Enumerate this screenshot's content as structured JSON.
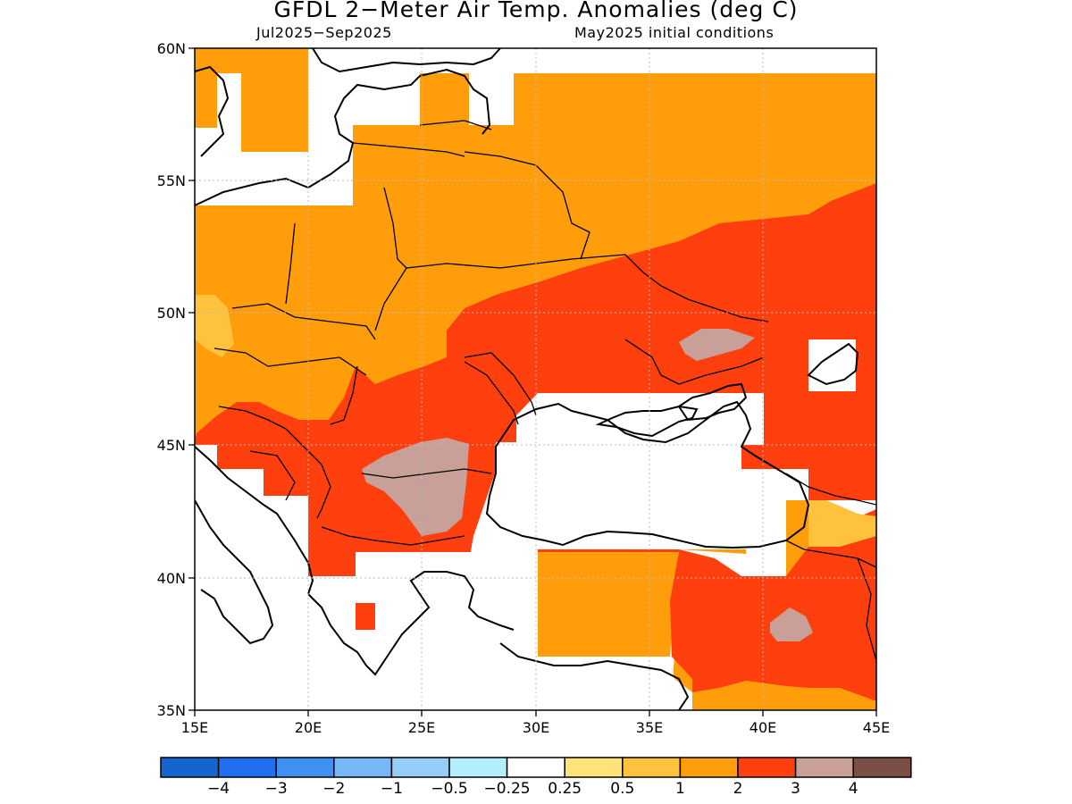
{
  "title": "GFDL 2−Meter Air Temp. Anomalies (deg C)",
  "subtitle_left": "Jul2025−Sep2025",
  "subtitle_right": "May2025 initial conditions",
  "map": {
    "lon_range": [
      15,
      45
    ],
    "lat_range": [
      35,
      60
    ],
    "lat_ticks": [
      "60N",
      "55N",
      "50N",
      "45N",
      "40N",
      "35N"
    ],
    "lon_ticks": [
      "15E",
      "20E",
      "25E",
      "30E",
      "35E",
      "40E",
      "45E"
    ]
  },
  "colorbar": {
    "colors": [
      "#1565d0",
      "#1f6ff0",
      "#3f90f0",
      "#77b7f7",
      "#93cdf8",
      "#b3eefd",
      "#ffffff",
      "#ffe27a",
      "#ffc23c",
      "#ff9e0a",
      "#ff3f0e",
      "#c8a098",
      "#7b4f45"
    ],
    "labels": [
      "−4",
      "−3",
      "−2",
      "−1",
      "−0.5",
      "−0.25",
      "0.25",
      "0.5",
      "1",
      "2",
      "3",
      "4"
    ]
  }
}
